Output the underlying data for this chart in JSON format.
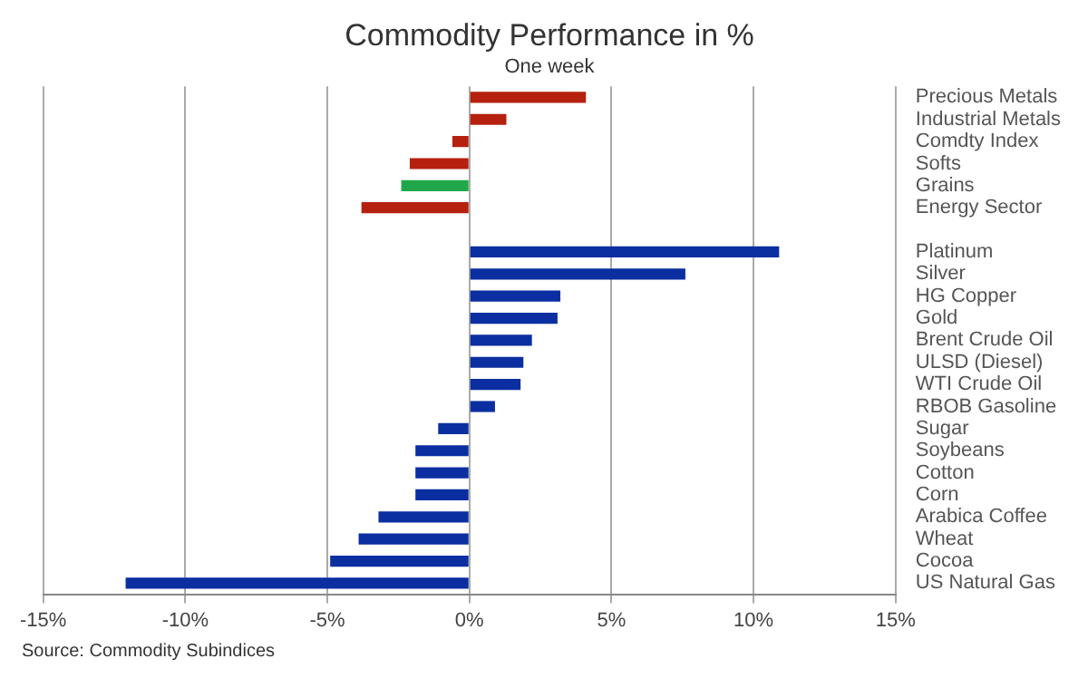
{
  "chart_data": {
    "type": "bar",
    "orientation": "horizontal",
    "title": "Commodity Performance in %",
    "subtitle": "One week",
    "categories": [
      "Precious Metals",
      "Industrial Metals",
      "Comdty Index",
      "Softs",
      "Grains",
      "Energy Sector",
      null,
      "Platinum",
      "Silver",
      "HG Copper",
      "Gold",
      "Brent Crude Oil",
      "ULSD (Diesel)",
      "WTI Crude Oil",
      "RBOB Gasoline",
      "Sugar",
      "Soybeans",
      "Cotton",
      "Corn",
      "Arabica Coffee",
      "Wheat",
      "Cocoa",
      "US Natural Gas"
    ],
    "values": [
      4.1,
      1.3,
      -0.6,
      -2.1,
      -2.4,
      -3.8,
      null,
      10.9,
      7.6,
      3.2,
      3.1,
      2.2,
      1.9,
      1.8,
      0.9,
      -1.1,
      -1.9,
      -1.9,
      -1.9,
      -3.2,
      -3.9,
      -4.9,
      -12.1
    ],
    "colors": [
      "#b5200f",
      "#b5200f",
      "#b5200f",
      "#b5200f",
      "#1fa84a",
      "#b5200f",
      "#b5200f",
      "#0b2fa0",
      "#0b2fa0",
      "#0b2fa0",
      "#0b2fa0",
      "#0b2fa0",
      "#0b2fa0",
      "#0b2fa0",
      "#0b2fa0",
      "#0b2fa0",
      "#0b2fa0",
      "#0b2fa0",
      "#0b2fa0",
      "#0b2fa0",
      "#0b2fa0",
      "#0b2fa0",
      "#0b2fa0"
    ],
    "xlim": [
      -15,
      15
    ],
    "xticks": [
      {
        "value": -15,
        "label": "-15%"
      },
      {
        "value": -10,
        "label": "-10%"
      },
      {
        "value": -5,
        "label": "-5%"
      },
      {
        "value": 0,
        "label": "0%"
      },
      {
        "value": 5,
        "label": "5%"
      },
      {
        "value": 10,
        "label": "10%"
      },
      {
        "value": 15,
        "label": "15%"
      }
    ],
    "grid": "x",
    "legend": false,
    "annotations": [
      "Source: Commodity Subindices"
    ]
  }
}
